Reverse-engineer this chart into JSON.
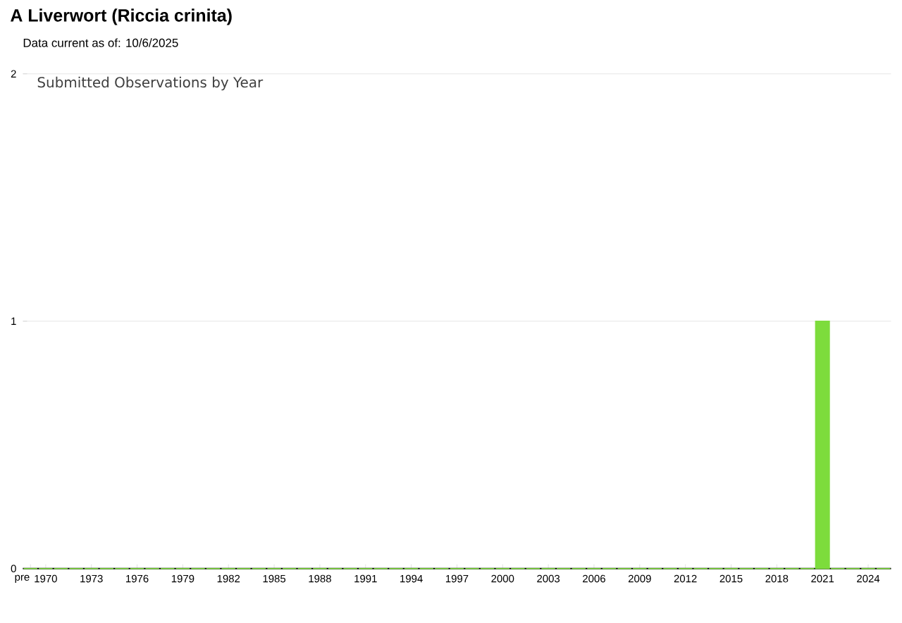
{
  "chart_data": {
    "type": "bar",
    "title": "A Liverwort   (Riccia crinita)",
    "subtitle": "Data current as of: 10/6/2025",
    "annotations": [
      "Submitted Observations by Year"
    ],
    "categories": [
      "pre",
      "1970",
      null,
      null,
      "1973",
      null,
      null,
      "1976",
      null,
      null,
      "1979",
      null,
      null,
      "1982",
      null,
      null,
      "1985",
      null,
      null,
      "1988",
      null,
      null,
      "1991",
      null,
      null,
      "1994",
      null,
      null,
      "1997",
      null,
      null,
      "2000",
      null,
      null,
      "2003",
      null,
      null,
      "2006",
      null,
      null,
      "2009",
      null,
      null,
      "2012",
      null,
      null,
      "2015",
      null,
      null,
      "2018",
      null,
      null,
      "2021",
      null,
      null,
      "2024",
      null
    ],
    "values": [
      0,
      0,
      0,
      0,
      0,
      0,
      0,
      0,
      0,
      0,
      0,
      0,
      0,
      0,
      0,
      0,
      0,
      0,
      0,
      0,
      0,
      0,
      0,
      0,
      0,
      0,
      0,
      0,
      0,
      0,
      0,
      0,
      0,
      0,
      0,
      0,
      0,
      0,
      0,
      0,
      0,
      0,
      0,
      0,
      0,
      0,
      0,
      0,
      0,
      0,
      0,
      0,
      1,
      0,
      0,
      0,
      0
    ],
    "color": "#7ddc3c",
    "ylim": [
      0,
      2
    ],
    "yticks": [
      0,
      1,
      2
    ],
    "grid": "y"
  }
}
